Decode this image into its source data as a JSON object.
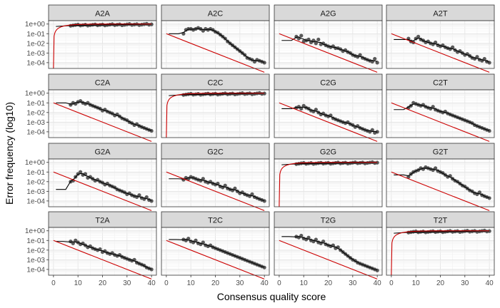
{
  "chart_data": {
    "type": "scatter",
    "facet_grid": {
      "rows": 4,
      "cols": 4
    },
    "xlabel": "Consensus quality score",
    "ylabel": "Error frequency (log10)",
    "x_ticks": [
      0,
      10,
      20,
      30,
      40
    ],
    "y_ticks": [
      "1e+00",
      "1e-01",
      "1e-02",
      "1e-03",
      "1e-04"
    ],
    "y_tick_exponents": [
      0,
      -1,
      -2,
      -3,
      -4
    ],
    "xlim": [
      -2,
      42
    ],
    "ylim_log10": [
      -4.6,
      0.35
    ],
    "grid": true,
    "series_colors": {
      "points": "#595959",
      "fitted": "#000000",
      "nominal": "#cc0000"
    },
    "facets": [
      {
        "label": "A2A",
        "kind": "diag"
      },
      {
        "label": "A2C",
        "kind": "off",
        "start": -1.0,
        "drop": 5,
        "pts": [
          -1.0,
          -0.6,
          -0.5,
          -0.5,
          -0.6,
          -0.5,
          -0.4,
          -0.5,
          -0.7,
          -0.5,
          -0.6,
          -0.5,
          -0.6,
          -0.8,
          -0.9,
          -1.1,
          -1.3,
          -1.5,
          -1.8,
          -2.0,
          -2.2,
          -2.4,
          -2.6,
          -2.8,
          -3.0,
          -3.2,
          -3.5,
          -3.6,
          -3.7,
          -3.9,
          -3.7,
          -3.8,
          -3.9,
          -4.0
        ]
      },
      {
        "label": "A2G",
        "kind": "off",
        "start": -1.7,
        "drop": 5,
        "pts": [
          -1.3,
          -1.5,
          -1.2,
          -1.8,
          -1.7,
          -1.6,
          -1.9,
          -1.7,
          -2.0,
          -1.6,
          -2.1,
          -2.0,
          -2.2,
          -2.3,
          -2.4,
          -2.3,
          -2.5,
          -2.5,
          -2.6,
          -2.8,
          -2.7,
          -2.9,
          -3.0,
          -3.2,
          -3.3,
          -3.4,
          -3.2,
          -3.5,
          -3.6,
          -3.7,
          -3.8,
          -3.9,
          -3.6,
          -4.0
        ]
      },
      {
        "label": "A2T",
        "kind": "off",
        "start": -1.6,
        "drop": 5,
        "pts": [
          -1.5,
          -1.8,
          -1.9,
          -1.5,
          -1.3,
          -1.6,
          -1.7,
          -1.9,
          -1.8,
          -2.0,
          -2.1,
          -1.9,
          -2.2,
          -2.3,
          -2.2,
          -2.4,
          -2.5,
          -2.6,
          -2.4,
          -2.7,
          -2.9,
          -2.8,
          -3.0,
          -3.2,
          -3.1,
          -3.3,
          -3.5,
          -3.6,
          -3.4,
          -3.7,
          -3.8,
          -3.6,
          -3.9,
          -4.0
        ]
      },
      {
        "label": "C2A",
        "kind": "off",
        "start": -1.0,
        "drop": 5,
        "pts": [
          -1.2,
          -1.0,
          -1.1,
          -0.9,
          -0.8,
          -1.0,
          -1.1,
          -1.0,
          -1.2,
          -1.3,
          -1.4,
          -1.5,
          -1.6,
          -1.8,
          -1.7,
          -1.9,
          -2.0,
          -2.1,
          -2.3,
          -2.2,
          -2.4,
          -2.6,
          -2.7,
          -2.8,
          -3.0,
          -3.1,
          -3.3,
          -3.2,
          -3.4,
          -3.5,
          -3.6,
          -3.7,
          -3.8,
          -3.9
        ]
      },
      {
        "label": "C2C",
        "kind": "diag"
      },
      {
        "label": "C2G",
        "kind": "off",
        "start": -1.6,
        "drop": 5,
        "pts": [
          -1.5,
          -1.4,
          -1.6,
          -1.3,
          -1.5,
          -1.6,
          -1.8,
          -1.9,
          -1.7,
          -2.0,
          -2.2,
          -2.1,
          -2.3,
          -2.4,
          -2.3,
          -2.6,
          -2.7,
          -2.8,
          -2.9,
          -3.0,
          -3.1,
          -3.0,
          -3.2,
          -3.3,
          -3.5,
          -3.4,
          -3.6,
          -3.7,
          -3.8,
          -3.9,
          -4.0,
          -3.8,
          -4.1,
          -4.0
        ]
      },
      {
        "label": "C2T",
        "kind": "off",
        "start": -1.7,
        "drop": 5,
        "pts": [
          -1.5,
          -1.3,
          -1.0,
          -1.1,
          -1.2,
          -1.3,
          -1.2,
          -1.4,
          -1.5,
          -1.6,
          -1.4,
          -1.7,
          -1.8,
          -1.9,
          -2.0,
          -1.9,
          -2.1,
          -2.2,
          -2.3,
          -2.4,
          -2.5,
          -2.6,
          -2.7,
          -2.8,
          -2.9,
          -3.0,
          -3.1,
          -3.3,
          -3.4,
          -3.5,
          -3.6,
          -3.7,
          -3.8,
          -3.9
        ]
      },
      {
        "label": "G2A",
        "kind": "off",
        "start": -2.8,
        "drop": 5,
        "pts": [
          -2.0,
          -1.9,
          -1.5,
          -1.2,
          -1.0,
          -1.3,
          -1.2,
          -1.6,
          -1.5,
          -1.7,
          -1.9,
          -1.8,
          -2.0,
          -2.1,
          -2.3,
          -2.2,
          -2.4,
          -2.5,
          -2.6,
          -2.8,
          -2.9,
          -3.0,
          -3.1,
          -3.3,
          -3.2,
          -3.4,
          -3.5,
          -3.6,
          -3.4,
          -3.7,
          -3.8,
          -3.6,
          -3.9,
          -4.0
        ]
      },
      {
        "label": "G2C",
        "kind": "off",
        "start": -1.7,
        "drop": 5,
        "pts": [
          -1.8,
          -1.6,
          -1.7,
          -1.5,
          -1.6,
          -1.7,
          -1.8,
          -1.9,
          -1.7,
          -2.0,
          -2.1,
          -2.0,
          -2.2,
          -2.3,
          -2.2,
          -2.5,
          -2.6,
          -2.4,
          -2.7,
          -2.8,
          -2.9,
          -2.7,
          -3.0,
          -3.2,
          -3.1,
          -3.3,
          -3.4,
          -3.5,
          -3.3,
          -3.6,
          -3.7,
          -3.8,
          -3.9,
          -4.0
        ]
      },
      {
        "label": "G2G",
        "kind": "diag"
      },
      {
        "label": "G2T",
        "kind": "off",
        "start": -1.3,
        "drop": 5,
        "pts": [
          -1.5,
          -1.2,
          -1.0,
          -0.9,
          -0.8,
          -0.6,
          -0.7,
          -0.5,
          -0.6,
          -0.7,
          -0.8,
          -0.6,
          -0.9,
          -1.0,
          -1.1,
          -1.3,
          -1.5,
          -1.4,
          -1.7,
          -1.9,
          -2.0,
          -2.2,
          -2.4,
          -2.5,
          -2.7,
          -2.9,
          -3.0,
          -3.2,
          -3.3,
          -3.1,
          -3.4,
          -3.5,
          -3.6,
          -3.7
        ]
      },
      {
        "label": "T2A",
        "kind": "off",
        "start": -1.1,
        "drop": 4,
        "pts": [
          -1.1,
          -1.3,
          -1.0,
          -1.2,
          -1.4,
          -1.3,
          -1.5,
          -1.7,
          -1.6,
          -1.8,
          -1.9,
          -2.0,
          -1.9,
          -2.2,
          -2.1,
          -2.3,
          -2.4,
          -2.3,
          -2.5,
          -2.6,
          -2.5,
          -2.7,
          -2.8,
          -2.9,
          -3.0,
          -3.1,
          -3.0,
          -3.3,
          -3.4,
          -3.5,
          -3.6,
          -3.8,
          -3.9,
          -4.0
        ]
      },
      {
        "label": "T2C",
        "kind": "off",
        "start": -0.9,
        "drop": 4,
        "pts": [
          -0.9,
          -1.0,
          -0.8,
          -1.1,
          -1.2,
          -1.0,
          -1.3,
          -1.4,
          -1.2,
          -1.5,
          -1.6,
          -1.5,
          -1.7,
          -1.8,
          -1.9,
          -2.0,
          -2.1,
          -2.2,
          -2.3,
          -2.4,
          -2.5,
          -2.6,
          -2.7,
          -2.8,
          -2.9,
          -3.0,
          -3.1,
          -3.2,
          -3.3,
          -3.4,
          -3.5,
          -3.6,
          -3.7,
          -3.8
        ]
      },
      {
        "label": "T2G",
        "kind": "off",
        "start": -0.6,
        "drop": 4,
        "pts": [
          -0.6,
          -0.7,
          -0.5,
          -0.8,
          -0.9,
          -0.7,
          -1.0,
          -1.1,
          -0.9,
          -1.2,
          -1.3,
          -1.1,
          -1.4,
          -1.5,
          -1.6,
          -1.5,
          -1.8,
          -1.7,
          -2.0,
          -2.2,
          -2.4,
          -2.6,
          -2.8,
          -3.0,
          -3.1,
          -3.3,
          -3.4,
          -3.5,
          -3.6,
          -3.7,
          -3.8,
          -3.9,
          -4.0,
          -4.1
        ]
      },
      {
        "label": "T2T",
        "kind": "diag"
      }
    ]
  }
}
